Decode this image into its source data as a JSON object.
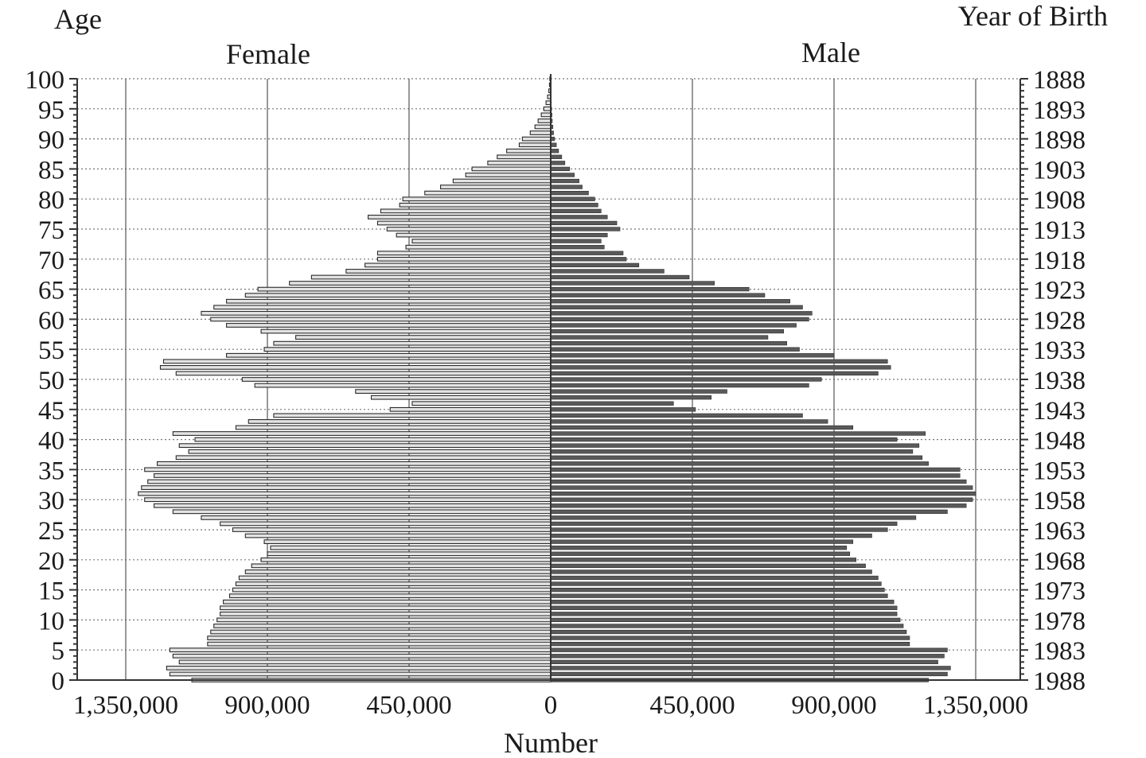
{
  "chart_data": {
    "type": "bar",
    "orientation": "horizontal",
    "layout": "population-pyramid",
    "title_left": "Age",
    "title_right": "Year of Birth",
    "left_label": "Female",
    "right_label": "Male",
    "xlabel": "Number",
    "x_ticks": [
      {
        "value": -1350000,
        "label": "1,350,000"
      },
      {
        "value": -900000,
        "label": "900,000"
      },
      {
        "value": -450000,
        "label": "450,000"
      },
      {
        "value": 0,
        "label": "0"
      },
      {
        "value": 450000,
        "label": "450,000"
      },
      {
        "value": 900000,
        "label": "900,000"
      },
      {
        "value": 1350000,
        "label": "1,350,000"
      }
    ],
    "xlim": [
      -1500000,
      1500000
    ],
    "ylim": [
      0,
      100
    ],
    "age_ticks": [
      "0",
      "5",
      "10",
      "15",
      "20",
      "25",
      "30",
      "35",
      "40",
      "45",
      "50",
      "55",
      "60",
      "65",
      "70",
      "75",
      "80",
      "85",
      "90",
      "95",
      "100"
    ],
    "year_ticks": [
      "1988",
      "1983",
      "1978",
      "1973",
      "1968",
      "1963",
      "1958",
      "1953",
      "1948",
      "1943",
      "1938",
      "1933",
      "1928",
      "1923",
      "1918",
      "1913",
      "1908",
      "1903",
      "1898",
      "1893",
      "1888"
    ],
    "grid": true,
    "series": [
      {
        "name": "Female",
        "side": "left",
        "color": "#e3e3e3",
        "ages": [
          0,
          1,
          2,
          3,
          4,
          5,
          6,
          7,
          8,
          9,
          10,
          11,
          12,
          13,
          14,
          15,
          16,
          17,
          18,
          19,
          20,
          21,
          22,
          23,
          24,
          25,
          26,
          27,
          28,
          29,
          30,
          31,
          32,
          33,
          34,
          35,
          36,
          37,
          38,
          39,
          40,
          41,
          42,
          43,
          44,
          45,
          46,
          47,
          48,
          49,
          50,
          51,
          52,
          53,
          54,
          55,
          56,
          57,
          58,
          59,
          60,
          61,
          62,
          63,
          64,
          65,
          66,
          67,
          68,
          69,
          70,
          71,
          72,
          73,
          74,
          75,
          76,
          77,
          78,
          79,
          80,
          81,
          82,
          83,
          84,
          85,
          86,
          87,
          88,
          89,
          90,
          91,
          92,
          93,
          94,
          95,
          96,
          97,
          98,
          99,
          100
        ],
        "values": [
          1140000,
          1210000,
          1220000,
          1180000,
          1200000,
          1210000,
          1090000,
          1090000,
          1080000,
          1070000,
          1060000,
          1050000,
          1050000,
          1040000,
          1020000,
          1010000,
          1000000,
          990000,
          970000,
          950000,
          920000,
          900000,
          890000,
          910000,
          970000,
          1010000,
          1050000,
          1110000,
          1200000,
          1260000,
          1290000,
          1310000,
          1300000,
          1280000,
          1260000,
          1290000,
          1250000,
          1190000,
          1150000,
          1180000,
          1130000,
          1200000,
          1000000,
          960000,
          880000,
          510000,
          440000,
          570000,
          620000,
          940000,
          980000,
          1190000,
          1240000,
          1230000,
          1030000,
          910000,
          880000,
          810000,
          920000,
          1030000,
          1080000,
          1110000,
          1070000,
          1030000,
          970000,
          930000,
          830000,
          760000,
          650000,
          590000,
          550000,
          550000,
          460000,
          440000,
          490000,
          520000,
          550000,
          580000,
          540000,
          480000,
          470000,
          400000,
          350000,
          310000,
          270000,
          250000,
          200000,
          170000,
          140000,
          100000,
          90000,
          65000,
          50000,
          40000,
          30000,
          22000,
          15000,
          10000,
          6000,
          4000,
          3000
        ]
      },
      {
        "name": "Male",
        "side": "right",
        "color": "#5a5a5a",
        "ages": [
          0,
          1,
          2,
          3,
          4,
          5,
          6,
          7,
          8,
          9,
          10,
          11,
          12,
          13,
          14,
          15,
          16,
          17,
          18,
          19,
          20,
          21,
          22,
          23,
          24,
          25,
          26,
          27,
          28,
          29,
          30,
          31,
          32,
          33,
          34,
          35,
          36,
          37,
          38,
          39,
          40,
          41,
          42,
          43,
          44,
          45,
          46,
          47,
          48,
          49,
          50,
          51,
          52,
          53,
          54,
          55,
          56,
          57,
          58,
          59,
          60,
          61,
          62,
          63,
          64,
          65,
          66,
          67,
          68,
          69,
          70,
          71,
          72,
          73,
          74,
          75,
          76,
          77,
          78,
          79,
          80,
          81,
          82,
          83,
          84,
          85,
          86,
          87,
          88,
          89,
          90,
          91,
          92,
          93,
          94,
          95,
          96,
          97,
          98,
          99,
          100
        ],
        "values": [
          1200000,
          1260000,
          1270000,
          1230000,
          1250000,
          1260000,
          1140000,
          1140000,
          1130000,
          1120000,
          1110000,
          1100000,
          1100000,
          1090000,
          1070000,
          1060000,
          1050000,
          1040000,
          1020000,
          1000000,
          970000,
          950000,
          940000,
          960000,
          1020000,
          1070000,
          1100000,
          1160000,
          1260000,
          1320000,
          1340000,
          1350000,
          1340000,
          1320000,
          1300000,
          1300000,
          1200000,
          1180000,
          1150000,
          1170000,
          1100000,
          1190000,
          960000,
          880000,
          800000,
          460000,
          390000,
          510000,
          560000,
          820000,
          860000,
          1040000,
          1080000,
          1070000,
          900000,
          790000,
          750000,
          690000,
          740000,
          780000,
          820000,
          830000,
          800000,
          760000,
          680000,
          630000,
          520000,
          440000,
          360000,
          280000,
          240000,
          230000,
          170000,
          160000,
          180000,
          220000,
          210000,
          180000,
          160000,
          150000,
          140000,
          120000,
          100000,
          90000,
          75000,
          60000,
          45000,
          35000,
          25000,
          18000,
          12000,
          9000,
          7000,
          5000,
          4000,
          3000,
          2000,
          1500,
          1000,
          500,
          300
        ]
      }
    ]
  }
}
